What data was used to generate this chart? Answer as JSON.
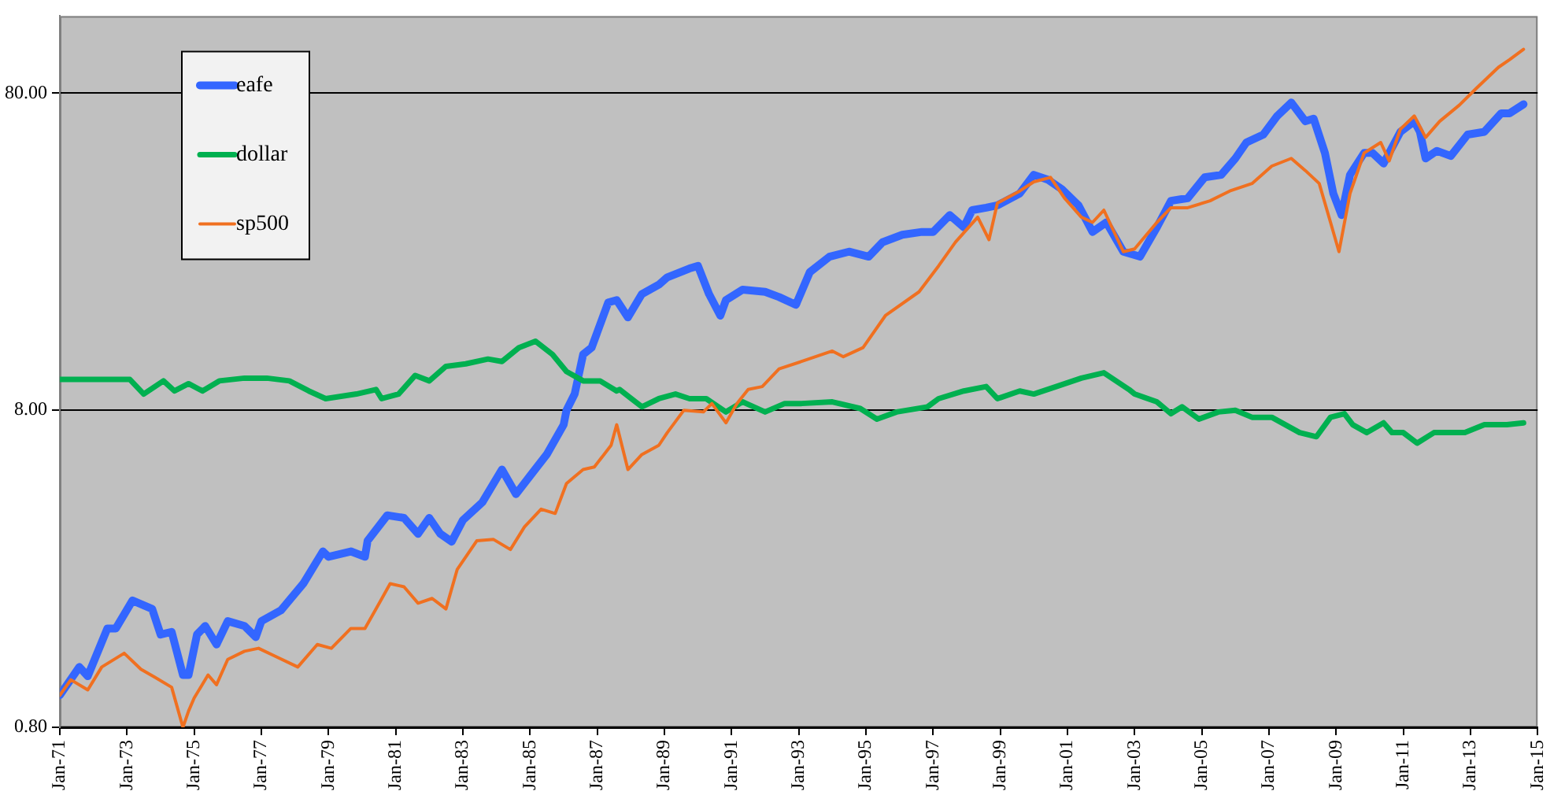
{
  "chart_data": {
    "type": "line",
    "log": "y",
    "grid": "y",
    "legend": "top left",
    "marker": "none",
    "line_style": "solid",
    "xlim": [
      "1971-01",
      "2015-01"
    ],
    "xticks": [
      {
        "value": "1971-01",
        "label": "Jan-71"
      },
      {
        "value": "1973-01",
        "label": "Jan-73"
      },
      {
        "value": "1975-01",
        "label": "Jan-75"
      },
      {
        "value": "1977-01",
        "label": "Jan-77"
      },
      {
        "value": "1979-01",
        "label": "Jan-79"
      },
      {
        "value": "1981-01",
        "label": "Jan-81"
      },
      {
        "value": "1983-01",
        "label": "Jan-83"
      },
      {
        "value": "1985-01",
        "label": "Jan-85"
      },
      {
        "value": "1987-01",
        "label": "Jan-87"
      },
      {
        "value": "1989-01",
        "label": "Jan-89"
      },
      {
        "value": "1991-01",
        "label": "Jan-91"
      },
      {
        "value": "1993-01",
        "label": "Jan-93"
      },
      {
        "value": "1995-01",
        "label": "Jan-95"
      },
      {
        "value": "1997-01",
        "label": "Jan-97"
      },
      {
        "value": "1999-01",
        "label": "Jan-99"
      },
      {
        "value": "2001-01",
        "label": "Jan-01"
      },
      {
        "value": "2003-01",
        "label": "Jan-03"
      },
      {
        "value": "2005-01",
        "label": "Jan-05"
      },
      {
        "value": "2007-01",
        "label": "Jan-07"
      },
      {
        "value": "2009-01",
        "label": "Jan-09"
      },
      {
        "value": "2011-01",
        "label": "Jan-11"
      },
      {
        "value": "2013-01",
        "label": "Jan-13"
      },
      {
        "value": "2015-01",
        "label": "Jan-15"
      }
    ],
    "ylim": [
      0.8,
      140
    ],
    "yticks": [
      {
        "value": 0.8,
        "label": "0.80"
      },
      {
        "value": 8,
        "label": "8.00"
      },
      {
        "value": 80,
        "label": "80.00"
      }
    ],
    "series": [
      {
        "name": "eafe",
        "color": "#3366ff",
        "x": [
          "1971-01",
          "1971-08",
          "1971-11",
          "1972-06",
          "1972-09",
          "1973-03",
          "1973-10",
          "1974-01",
          "1974-05",
          "1974-09",
          "1974-11",
          "1975-02",
          "1975-05",
          "1975-09",
          "1976-01",
          "1976-07",
          "1976-11",
          "1977-01",
          "1977-08",
          "1978-04",
          "1978-11",
          "1979-01",
          "1979-09",
          "1980-02",
          "1980-03",
          "1980-10",
          "1981-04",
          "1981-09",
          "1982-01",
          "1982-05",
          "1982-09",
          "1983-01",
          "1983-08",
          "1984-03",
          "1984-08",
          "1985-02",
          "1985-07",
          "1986-01",
          "1986-02",
          "1986-05",
          "1986-08",
          "1986-11",
          "1987-05",
          "1987-08",
          "1987-12",
          "1988-05",
          "1988-11",
          "1989-02",
          "1989-10",
          "1990-01",
          "1990-05",
          "1990-09",
          "1990-11",
          "1991-05",
          "1992-01",
          "1992-06",
          "1992-12",
          "1993-05",
          "1993-12",
          "1994-07",
          "1995-02",
          "1995-07",
          "1996-02",
          "1996-09",
          "1997-01",
          "1997-07",
          "1997-12",
          "1998-03",
          "1998-08",
          "1998-12",
          "1999-08",
          "2000-01",
          "2000-06",
          "2000-11",
          "2001-05",
          "2001-10",
          "2002-03",
          "2002-09",
          "2003-03",
          "2003-09",
          "2004-02",
          "2004-08",
          "2005-02",
          "2005-08",
          "2006-01",
          "2006-05",
          "2006-11",
          "2007-04",
          "2007-09",
          "2008-02",
          "2008-05",
          "2008-09",
          "2008-12",
          "2009-03",
          "2009-06",
          "2009-11",
          "2010-02",
          "2010-06",
          "2010-12",
          "2011-05",
          "2011-07",
          "2011-09",
          "2012-01",
          "2012-06",
          "2012-12",
          "2013-06",
          "2013-12",
          "2014-03",
          "2014-08"
        ],
        "values": [
          1.01,
          1.24,
          1.16,
          1.64,
          1.64,
          2.01,
          1.89,
          1.57,
          1.6,
          1.17,
          1.17,
          1.57,
          1.67,
          1.46,
          1.73,
          1.67,
          1.54,
          1.73,
          1.87,
          2.27,
          2.87,
          2.76,
          2.87,
          2.76,
          3.1,
          3.73,
          3.66,
          3.26,
          3.66,
          3.26,
          3.08,
          3.6,
          4.1,
          5.2,
          4.35,
          5.1,
          5.8,
          7.2,
          8.0,
          9.0,
          12.0,
          12.6,
          17.5,
          17.8,
          15.7,
          18.6,
          19.9,
          21.0,
          22.4,
          22.8,
          18.6,
          15.9,
          17.8,
          19.2,
          18.9,
          18.2,
          17.2,
          21.8,
          24.4,
          25.3,
          24.4,
          27.1,
          28.6,
          29.2,
          29.2,
          33.0,
          30.2,
          34.2,
          34.8,
          35.4,
          38.6,
          44.2,
          42.7,
          39.8,
          35.4,
          29.2,
          31.3,
          25.3,
          24.4,
          30.2,
          36.6,
          37.3,
          43.4,
          44.2,
          49.8,
          55.9,
          59.2,
          67.8,
          74.7,
          65.2,
          66.5,
          51.8,
          38.6,
          33.0,
          44.2,
          51.8,
          51.8,
          48.0,
          60.4,
          65.2,
          60.4,
          49.8,
          52.6,
          50.7,
          59.2,
          60.4,
          69.1,
          69.1,
          73.8
        ]
      },
      {
        "name": "dollar",
        "color": "#00b050",
        "x": [
          "1971-01",
          "1973-02",
          "1973-07",
          "1974-02",
          "1974-06",
          "1974-11",
          "1975-04",
          "1975-10",
          "1976-07",
          "1977-03",
          "1977-11",
          "1978-06",
          "1978-12",
          "1979-11",
          "1980-06",
          "1980-08",
          "1981-02",
          "1981-08",
          "1982-01",
          "1982-07",
          "1983-02",
          "1983-10",
          "1984-03",
          "1984-09",
          "1985-03",
          "1985-09",
          "1986-02",
          "1986-08",
          "1987-02",
          "1987-08",
          "1987-09",
          "1988-05",
          "1988-11",
          "1989-05",
          "1989-10",
          "1990-04",
          "1990-11",
          "1991-05",
          "1992-01",
          "1992-08",
          "1993-02",
          "1994-01",
          "1994-11",
          "1995-05",
          "1995-12",
          "1996-11",
          "1997-03",
          "1997-12",
          "1998-08",
          "1998-12",
          "1999-08",
          "2000-01",
          "2000-09",
          "2001-06",
          "2002-02",
          "2002-11",
          "2003-01",
          "2003-09",
          "2004-02",
          "2004-06",
          "2004-12",
          "2005-07",
          "2006-01",
          "2006-07",
          "2007-02",
          "2007-12",
          "2008-06",
          "2008-11",
          "2009-04",
          "2009-07",
          "2009-12",
          "2010-06",
          "2010-09",
          "2011-01",
          "2011-06",
          "2011-12",
          "2012-05",
          "2012-11",
          "2013-06",
          "2014-02",
          "2014-08"
        ],
        "values": [
          10.0,
          10.0,
          9.0,
          9.9,
          9.2,
          9.7,
          9.2,
          9.9,
          10.1,
          10.1,
          9.9,
          9.2,
          8.7,
          9.0,
          9.3,
          8.7,
          9.0,
          10.3,
          9.9,
          11.0,
          11.2,
          11.6,
          11.4,
          12.6,
          13.2,
          12.0,
          10.6,
          9.9,
          9.9,
          9.2,
          9.3,
          8.2,
          8.7,
          9.0,
          8.7,
          8.7,
          7.9,
          8.5,
          7.9,
          8.4,
          8.4,
          8.5,
          8.1,
          7.5,
          7.9,
          8.2,
          8.7,
          9.2,
          9.5,
          8.7,
          9.2,
          9.0,
          9.5,
          10.1,
          10.5,
          9.3,
          9.0,
          8.5,
          7.8,
          8.2,
          7.5,
          7.9,
          8.0,
          7.6,
          7.6,
          6.8,
          6.6,
          7.6,
          7.8,
          7.2,
          6.8,
          7.3,
          6.8,
          6.8,
          6.3,
          6.8,
          6.8,
          6.8,
          7.2,
          7.2,
          7.3
        ]
      },
      {
        "name": "sp500",
        "color": "#f07020",
        "x": [
          "1971-01",
          "1971-05",
          "1971-11",
          "1972-04",
          "1972-12",
          "1973-06",
          "1973-11",
          "1974-05",
          "1974-09",
          "1974-11",
          "1975-01",
          "1975-06",
          "1975-09",
          "1976-01",
          "1976-07",
          "1976-12",
          "1977-06",
          "1978-02",
          "1978-09",
          "1979-02",
          "1979-09",
          "1980-02",
          "1980-06",
          "1980-11",
          "1981-04",
          "1981-09",
          "1982-02",
          "1982-07",
          "1982-11",
          "1983-06",
          "1983-12",
          "1984-06",
          "1984-11",
          "1985-05",
          "1985-10",
          "1986-02",
          "1986-08",
          "1986-12",
          "1987-06",
          "1987-08",
          "1987-12",
          "1988-05",
          "1988-11",
          "1989-02",
          "1989-08",
          "1990-03",
          "1990-06",
          "1990-11",
          "1991-03",
          "1991-07",
          "1991-12",
          "1992-06",
          "1993-02",
          "1994-01",
          "1994-05",
          "1994-12",
          "1995-08",
          "1996-08",
          "1997-03",
          "1997-09",
          "1998-05",
          "1998-09",
          "1998-12",
          "1999-08",
          "2000-01",
          "2000-07",
          "2000-12",
          "2001-06",
          "2001-10",
          "2002-02",
          "2002-09",
          "2003-01",
          "2003-09",
          "2004-02",
          "2004-08",
          "2005-04",
          "2005-11",
          "2006-07",
          "2007-02",
          "2007-09",
          "2008-02",
          "2008-07",
          "2008-11",
          "2009-02",
          "2009-06",
          "2009-11",
          "2010-05",
          "2010-08",
          "2010-12",
          "2011-05",
          "2011-09",
          "2012-02",
          "2012-09",
          "2013-03",
          "2013-11",
          "2014-03",
          "2014-08"
        ],
        "values": [
          1.01,
          1.13,
          1.05,
          1.24,
          1.37,
          1.22,
          1.15,
          1.07,
          0.8,
          0.9,
          0.99,
          1.17,
          1.09,
          1.31,
          1.39,
          1.42,
          1.34,
          1.24,
          1.46,
          1.42,
          1.64,
          1.64,
          1.89,
          2.27,
          2.22,
          1.97,
          2.04,
          1.89,
          2.52,
          3.1,
          3.13,
          2.91,
          3.43,
          3.9,
          3.78,
          4.7,
          5.2,
          5.3,
          6.2,
          7.2,
          5.2,
          5.8,
          6.2,
          6.8,
          8.0,
          7.9,
          8.4,
          7.3,
          8.4,
          9.3,
          9.5,
          10.8,
          11.4,
          12.3,
          11.8,
          12.6,
          15.9,
          18.9,
          22.8,
          27.1,
          32.5,
          27.6,
          36.0,
          39.3,
          42.0,
          43.4,
          37.3,
          32.5,
          31.3,
          34.2,
          25.3,
          25.8,
          31.3,
          34.8,
          34.8,
          36.6,
          39.3,
          41.5,
          47.1,
          49.8,
          45.6,
          41.5,
          31.3,
          25.3,
          38.6,
          51.8,
          55.9,
          48.9,
          61.6,
          67.8,
          58.0,
          65.2,
          73.3,
          82.6,
          96.5,
          102,
          110
        ]
      }
    ]
  }
}
